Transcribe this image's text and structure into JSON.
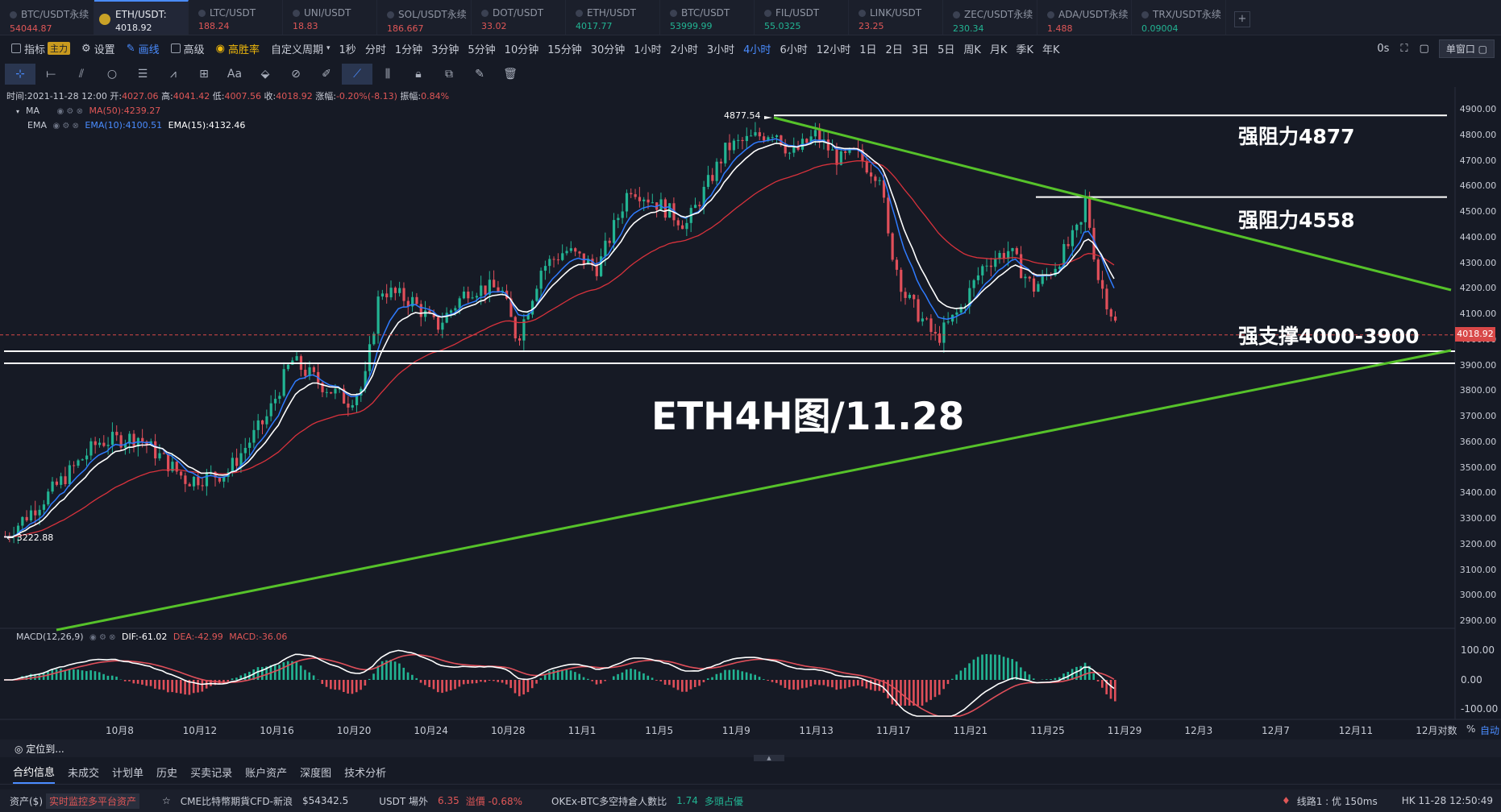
{
  "tabs": [
    {
      "name": "BTC/USDT永续",
      "price": "54044.87",
      "up": false
    },
    {
      "name": "ETH/USDT:",
      "price": "4018.92",
      "up": false,
      "active": true
    },
    {
      "name": "LTC/USDT",
      "price": "188.24",
      "up": false
    },
    {
      "name": "UNI/USDT",
      "price": "18.83",
      "up": false
    },
    {
      "name": "SOL/USDT永续",
      "price": "186.667",
      "up": false
    },
    {
      "name": "DOT/USDT",
      "price": "33.02",
      "up": false
    },
    {
      "name": "ETH/USDT",
      "price": "4017.77",
      "up": true
    },
    {
      "name": "BTC/USDT",
      "price": "53999.99",
      "up": true
    },
    {
      "name": "FIL/USDT",
      "price": "55.0325",
      "up": true
    },
    {
      "name": "LINK/USDT",
      "price": "23.25",
      "up": false
    },
    {
      "name": "ZEC/USDT永续",
      "price": "230.34",
      "up": true
    },
    {
      "name": "ADA/USDT永续",
      "price": "1.488",
      "up": false
    },
    {
      "name": "TRX/USDT永续",
      "price": "0.09004",
      "up": true
    }
  ],
  "toolbar": {
    "indicator": "指标",
    "main_badge": "主力",
    "settings": "设置",
    "draw": "画线",
    "advanced": "高级",
    "winrate": "高胜率",
    "custom_period": "自定义周期",
    "periods": [
      "1秒",
      "分时",
      "1分钟",
      "3分钟",
      "5分钟",
      "10分钟",
      "15分钟",
      "30分钟",
      "1小时",
      "2小时",
      "3小时",
      "4小时",
      "6小时",
      "12小时",
      "1日",
      "2日",
      "3日",
      "5日",
      "周K",
      "月K",
      "季K",
      "年K"
    ],
    "selected_period": "4小时",
    "latency": "0s",
    "window": "单窗口"
  },
  "info": {
    "time_label": "时间:",
    "time": "2021-11-28 12:00",
    "open_label": "开:",
    "open": "4027.06",
    "high_label": "高:",
    "high": "4041.42",
    "low_label": "低:",
    "low": "4007.56",
    "close_label": "收:",
    "close": "4018.92",
    "change_label": "涨幅:",
    "change": "-0.20%(-8.13)",
    "amp_label": "振幅:",
    "amp": "0.84%"
  },
  "ma": {
    "label": "MA",
    "ma50": "MA(50):4239.27"
  },
  "ema": {
    "label": "EMA",
    "ema10": "EMA(10):4100.51",
    "ema15": "EMA(15):4132.46"
  },
  "macd": {
    "label": "MACD(12,26,9)",
    "dif": "DIF:-61.02",
    "dea": "DEA:-42.99",
    "macd": "MACD:-36.06"
  },
  "annotations": {
    "resist1": "强阻力4877",
    "resist2": "强阻力4558",
    "support": "强支撑4000-3900",
    "title": "ETH4H图/11.28",
    "high_tag": "4877.54",
    "low_tag": "← 3222.88"
  },
  "price_tag": "4018.92",
  "yaxis": [
    "4900.00",
    "4800.00",
    "4700.00",
    "4600.00",
    "4500.00",
    "4400.00",
    "4300.00",
    "4200.00",
    "4100.00",
    "4000.00",
    "3900.00",
    "3800.00",
    "3700.00",
    "3600.00",
    "3500.00",
    "3400.00",
    "3300.00",
    "3200.00",
    "3100.00",
    "3000.00",
    "2900.00"
  ],
  "macd_axis": [
    "100.00",
    "0.00",
    "-100.00"
  ],
  "xaxis": [
    "10月8",
    "10月12",
    "10月16",
    "10月20",
    "10月24",
    "10月28",
    "11月1",
    "11月5",
    "11月9",
    "11月13",
    "11月17",
    "11月21",
    "11月25",
    "11月29",
    "12月3",
    "12月7",
    "12月11",
    "12月对数"
  ],
  "axis_opts": {
    "pct": "%",
    "auto": "自动"
  },
  "locate": "定位到...",
  "bottom_tabs": [
    "合约信息",
    "未成交",
    "计划单",
    "历史",
    "买卖记录",
    "账户资产",
    "深度图",
    "技术分析"
  ],
  "status": {
    "assets": "资产($)",
    "monitor": "实时监控多平台资产",
    "cme": "CME比特幣期貨CFD-新浪",
    "cme_val": "$54342.5",
    "usdt": "USDT 場外",
    "usdt_val": "6.35",
    "premium": "溢價 -0.68%",
    "okex": "OKEx-BTC多空持倉人數比",
    "okex_val": "1.74",
    "okex_note": "多頭占優",
    "line": "线路1 : 优 150ms",
    "time": "HK 11-28 12:50:49"
  }
}
